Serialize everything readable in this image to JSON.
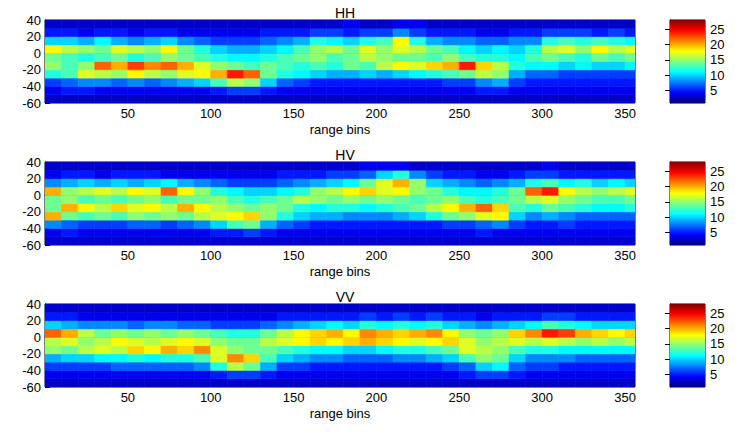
{
  "chart_data": [
    {
      "type": "heatmap",
      "title": "HH",
      "xlabel": "range bins",
      "xlim": [
        0,
        356
      ],
      "xticks": [
        50,
        100,
        150,
        200,
        250,
        300,
        350
      ],
      "ylim": [
        -60,
        40
      ],
      "yticks": [
        -60,
        -40,
        -20,
        0,
        20,
        40
      ],
      "x_edges": [
        0,
        10,
        20,
        30,
        40,
        50,
        60,
        70,
        80,
        90,
        100,
        110,
        120,
        130,
        140,
        150,
        160,
        170,
        180,
        190,
        200,
        210,
        220,
        230,
        240,
        250,
        260,
        270,
        280,
        290,
        300,
        310,
        320,
        330,
        340,
        350,
        360
      ],
      "y_edges": [
        -60,
        -50,
        -40,
        -30,
        -20,
        -10,
        0,
        10,
        20,
        30,
        40
      ],
      "cells": [
        [
          3,
          3,
          3,
          3,
          3,
          3,
          3,
          3,
          3,
          3,
          3,
          3,
          3,
          3,
          3,
          3,
          3,
          3,
          3,
          3,
          3,
          3,
          3,
          3,
          3,
          3,
          3,
          3,
          3,
          3,
          3,
          3,
          3,
          3,
          3,
          3
        ],
        [
          4,
          5,
          5,
          4,
          4,
          4,
          4,
          4,
          4,
          4,
          5,
          6,
          6,
          5,
          4,
          4,
          4,
          4,
          4,
          4,
          4,
          4,
          4,
          4,
          4,
          4,
          5,
          5,
          4,
          4,
          4,
          4,
          4,
          4,
          4,
          4
        ],
        [
          6,
          7,
          8,
          8,
          7,
          8,
          7,
          8,
          9,
          10,
          13,
          16,
          15,
          10,
          7,
          6,
          5,
          5,
          5,
          5,
          5,
          5,
          5,
          5,
          6,
          6,
          8,
          9,
          6,
          5,
          5,
          5,
          5,
          5,
          5,
          5
        ],
        [
          12,
          13,
          17,
          16,
          15,
          18,
          16,
          15,
          17,
          18,
          20,
          24,
          22,
          14,
          12,
          11,
          10,
          9,
          9,
          10,
          9,
          10,
          11,
          12,
          13,
          14,
          16,
          15,
          9,
          7,
          7,
          6,
          6,
          6,
          6,
          6
        ],
        [
          15,
          13,
          15,
          22,
          20,
          23,
          21,
          22,
          20,
          17,
          15,
          14,
          13,
          14,
          13,
          12,
          13,
          12,
          14,
          13,
          16,
          18,
          17,
          19,
          20,
          24,
          19,
          16,
          12,
          11,
          11,
          10,
          11,
          10,
          10,
          11
        ],
        [
          14,
          13,
          12,
          13,
          14,
          12,
          13,
          15,
          14,
          13,
          12,
          11,
          11,
          12,
          13,
          14,
          15,
          13,
          14,
          16,
          15,
          14,
          14,
          13,
          15,
          13,
          12,
          12,
          11,
          13,
          14,
          13,
          12,
          14,
          13,
          14
        ],
        [
          18,
          16,
          15,
          14,
          17,
          16,
          15,
          18,
          14,
          12,
          10,
          9,
          9,
          10,
          11,
          13,
          15,
          16,
          14,
          17,
          15,
          17,
          16,
          14,
          13,
          11,
          10,
          11,
          10,
          12,
          16,
          17,
          15,
          18,
          16,
          17
        ],
        [
          10,
          10,
          9,
          11,
          9,
          8,
          9,
          10,
          8,
          7,
          6,
          6,
          6,
          7,
          8,
          9,
          12,
          11,
          10,
          12,
          13,
          18,
          12,
          9,
          8,
          8,
          7,
          7,
          8,
          8,
          12,
          13,
          12,
          13,
          12,
          11
        ],
        [
          5,
          5,
          4,
          5,
          5,
          4,
          5,
          5,
          4,
          4,
          4,
          4,
          4,
          5,
          5,
          5,
          6,
          6,
          5,
          6,
          6,
          8,
          6,
          5,
          5,
          5,
          4,
          4,
          5,
          5,
          6,
          6,
          6,
          5,
          6,
          5
        ],
        [
          3,
          3,
          3,
          3,
          3,
          3,
          3,
          3,
          3,
          3,
          3,
          3,
          3,
          3,
          3,
          3,
          3,
          3,
          4,
          3,
          3,
          4,
          4,
          3,
          3,
          3,
          3,
          3,
          3,
          3,
          3,
          3,
          3,
          3,
          3,
          3
        ]
      ],
      "colorbar": {
        "range": [
          1,
          28
        ],
        "ticks": [
          5,
          10,
          15,
          20,
          25
        ]
      }
    },
    {
      "type": "heatmap",
      "title": "HV",
      "xlabel": "range bins",
      "xlim": [
        0,
        356
      ],
      "xticks": [
        50,
        100,
        150,
        200,
        250,
        300,
        350
      ],
      "ylim": [
        -60,
        40
      ],
      "yticks": [
        -60,
        -40,
        -20,
        0,
        20,
        40
      ],
      "x_edges": [
        0,
        10,
        20,
        30,
        40,
        50,
        60,
        70,
        80,
        90,
        100,
        110,
        120,
        130,
        140,
        150,
        160,
        170,
        180,
        190,
        200,
        210,
        220,
        230,
        240,
        250,
        260,
        270,
        280,
        290,
        300,
        310,
        320,
        330,
        340,
        350,
        360
      ],
      "y_edges": [
        -60,
        -50,
        -40,
        -30,
        -20,
        -10,
        0,
        10,
        20,
        30,
        40
      ],
      "cells": [
        [
          3,
          3,
          3,
          3,
          3,
          3,
          3,
          3,
          3,
          3,
          3,
          3,
          3,
          3,
          3,
          3,
          3,
          3,
          3,
          3,
          3,
          3,
          3,
          3,
          3,
          3,
          3,
          3,
          3,
          3,
          3,
          3,
          3,
          3,
          3,
          3
        ],
        [
          4,
          5,
          4,
          4,
          4,
          4,
          4,
          4,
          4,
          4,
          5,
          5,
          6,
          5,
          4,
          4,
          4,
          4,
          4,
          4,
          4,
          4,
          4,
          4,
          4,
          4,
          5,
          4,
          4,
          4,
          4,
          4,
          4,
          4,
          4,
          4
        ],
        [
          8,
          7,
          6,
          6,
          6,
          7,
          7,
          6,
          7,
          8,
          10,
          13,
          14,
          9,
          7,
          6,
          5,
          5,
          5,
          5,
          5,
          5,
          5,
          5,
          6,
          6,
          7,
          8,
          6,
          5,
          5,
          6,
          5,
          5,
          5,
          5
        ],
        [
          20,
          14,
          13,
          14,
          13,
          15,
          14,
          15,
          14,
          16,
          17,
          18,
          19,
          15,
          12,
          10,
          9,
          9,
          8,
          8,
          8,
          9,
          10,
          12,
          14,
          15,
          17,
          18,
          10,
          8,
          9,
          8,
          7,
          7,
          7,
          7
        ],
        [
          14,
          20,
          18,
          16,
          19,
          17,
          18,
          16,
          20,
          18,
          16,
          15,
          14,
          15,
          14,
          12,
          11,
          12,
          12,
          11,
          12,
          13,
          14,
          16,
          18,
          20,
          22,
          19,
          13,
          12,
          14,
          13,
          12,
          11,
          11,
          12
        ],
        [
          14,
          15,
          13,
          14,
          13,
          14,
          15,
          13,
          14,
          14,
          15,
          13,
          12,
          13,
          14,
          16,
          15,
          14,
          15,
          14,
          15,
          14,
          13,
          14,
          15,
          13,
          12,
          13,
          14,
          16,
          17,
          15,
          14,
          13,
          13,
          14
        ],
        [
          20,
          15,
          16,
          17,
          16,
          18,
          17,
          22,
          18,
          15,
          12,
          11,
          10,
          10,
          11,
          12,
          15,
          16,
          18,
          19,
          17,
          18,
          15,
          14,
          12,
          11,
          11,
          12,
          14,
          22,
          24,
          18,
          16,
          15,
          16,
          17
        ],
        [
          8,
          9,
          10,
          9,
          10,
          9,
          10,
          11,
          9,
          8,
          7,
          6,
          6,
          6,
          7,
          8,
          9,
          10,
          11,
          14,
          17,
          20,
          15,
          10,
          9,
          8,
          7,
          8,
          9,
          12,
          13,
          11,
          12,
          10,
          11,
          10
        ],
        [
          4,
          5,
          5,
          4,
          5,
          5,
          5,
          4,
          4,
          4,
          4,
          4,
          4,
          4,
          5,
          5,
          5,
          6,
          6,
          7,
          10,
          12,
          8,
          6,
          5,
          5,
          4,
          4,
          5,
          6,
          6,
          5,
          5,
          5,
          5,
          5
        ],
        [
          3,
          3,
          3,
          3,
          3,
          3,
          3,
          3,
          3,
          3,
          3,
          3,
          3,
          3,
          3,
          3,
          3,
          3,
          3,
          4,
          4,
          4,
          3,
          3,
          3,
          3,
          3,
          3,
          3,
          3,
          4,
          3,
          3,
          3,
          3,
          3
        ]
      ],
      "colorbar": {
        "range": [
          1,
          28
        ],
        "ticks": [
          5,
          10,
          15,
          20,
          25
        ]
      }
    },
    {
      "type": "heatmap",
      "title": "VV",
      "xlabel": "range bins",
      "xlim": [
        0,
        356
      ],
      "xticks": [
        50,
        100,
        150,
        200,
        250,
        300,
        350
      ],
      "ylim": [
        -60,
        40
      ],
      "yticks": [
        -60,
        -40,
        -20,
        0,
        20,
        40
      ],
      "x_edges": [
        0,
        10,
        20,
        30,
        40,
        50,
        60,
        70,
        80,
        90,
        100,
        110,
        120,
        130,
        140,
        150,
        160,
        170,
        180,
        190,
        200,
        210,
        220,
        230,
        240,
        250,
        260,
        270,
        280,
        290,
        300,
        310,
        320,
        330,
        340,
        350,
        360
      ],
      "y_edges": [
        -60,
        -50,
        -40,
        -30,
        -20,
        -10,
        0,
        10,
        20,
        30,
        40
      ],
      "cells": [
        [
          3,
          3,
          3,
          3,
          3,
          3,
          3,
          3,
          3,
          3,
          3,
          3,
          3,
          3,
          3,
          3,
          3,
          3,
          3,
          3,
          3,
          3,
          3,
          3,
          3,
          3,
          3,
          3,
          3,
          3,
          3,
          3,
          3,
          3,
          3,
          3
        ],
        [
          4,
          4,
          4,
          4,
          4,
          4,
          4,
          4,
          4,
          4,
          5,
          6,
          6,
          5,
          4,
          4,
          4,
          4,
          4,
          4,
          4,
          4,
          4,
          4,
          4,
          5,
          6,
          6,
          5,
          4,
          4,
          4,
          4,
          4,
          4,
          4
        ],
        [
          6,
          6,
          6,
          6,
          7,
          7,
          7,
          7,
          7,
          8,
          12,
          16,
          14,
          9,
          6,
          6,
          5,
          5,
          5,
          5,
          5,
          5,
          5,
          5,
          6,
          7,
          10,
          11,
          7,
          6,
          6,
          5,
          5,
          5,
          5,
          5
        ],
        [
          9,
          10,
          10,
          11,
          11,
          12,
          11,
          12,
          12,
          13,
          17,
          21,
          19,
          13,
          10,
          9,
          8,
          8,
          7,
          7,
          7,
          8,
          8,
          9,
          10,
          13,
          15,
          14,
          10,
          8,
          8,
          8,
          7,
          7,
          7,
          7
        ],
        [
          15,
          14,
          16,
          17,
          16,
          19,
          18,
          20,
          19,
          21,
          17,
          15,
          14,
          14,
          13,
          12,
          11,
          11,
          10,
          10,
          11,
          12,
          12,
          13,
          14,
          17,
          16,
          15,
          13,
          12,
          12,
          11,
          11,
          11,
          11,
          11
        ],
        [
          16,
          17,
          15,
          16,
          18,
          17,
          16,
          17,
          18,
          17,
          15,
          14,
          14,
          16,
          17,
          18,
          19,
          18,
          19,
          20,
          19,
          18,
          17,
          18,
          19,
          17,
          15,
          16,
          17,
          16,
          17,
          16,
          15,
          16,
          15,
          16
        ],
        [
          22,
          20,
          16,
          14,
          15,
          14,
          15,
          14,
          15,
          14,
          13,
          12,
          12,
          14,
          16,
          18,
          19,
          20,
          18,
          21,
          20,
          19,
          20,
          21,
          18,
          15,
          14,
          15,
          19,
          21,
          24,
          23,
          20,
          19,
          18,
          19
        ],
        [
          10,
          9,
          8,
          8,
          8,
          7,
          8,
          8,
          7,
          7,
          6,
          6,
          6,
          7,
          8,
          9,
          10,
          11,
          10,
          12,
          11,
          12,
          11,
          12,
          10,
          9,
          8,
          9,
          10,
          11,
          13,
          12,
          11,
          10,
          10,
          10
        ],
        [
          5,
          5,
          4,
          4,
          4,
          4,
          4,
          4,
          4,
          4,
          4,
          4,
          4,
          4,
          5,
          5,
          5,
          5,
          5,
          6,
          5,
          6,
          5,
          6,
          5,
          5,
          4,
          5,
          5,
          5,
          6,
          6,
          5,
          5,
          5,
          5
        ],
        [
          3,
          3,
          3,
          3,
          3,
          3,
          3,
          3,
          3,
          3,
          3,
          3,
          3,
          3,
          3,
          3,
          3,
          3,
          3,
          3,
          3,
          3,
          3,
          3,
          3,
          3,
          3,
          3,
          3,
          3,
          3,
          3,
          3,
          3,
          3,
          3
        ]
      ],
      "colorbar": {
        "range": [
          1,
          28
        ],
        "ticks": [
          5,
          10,
          15,
          20,
          25
        ]
      }
    }
  ]
}
